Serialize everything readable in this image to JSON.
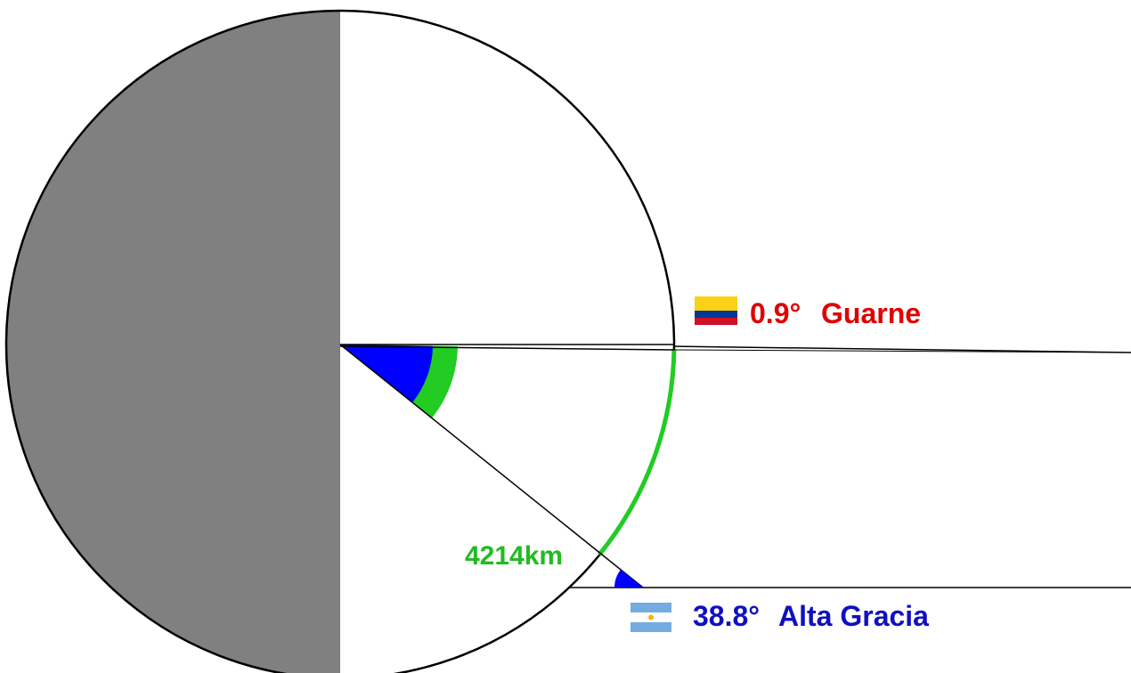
{
  "locations": [
    {
      "id": "guarne",
      "angle_label": "0.9°",
      "name": "Guarne",
      "color": "#e00000",
      "flag": "colombia",
      "flag_colors": [
        "#fcd116",
        "#003893",
        "#ce1126"
      ]
    },
    {
      "id": "alta_gracia",
      "angle_label": "38.8°",
      "name": "Alta Gracia",
      "color": "#1010c0",
      "flag": "argentina",
      "flag_colors": [
        "#74acdf",
        "#ffffff",
        "#74acdf"
      ]
    }
  ],
  "distance_label": "4214km",
  "colors": {
    "shadow": "#808080",
    "arc": "#22cc22",
    "angle_fill": "#0000ff",
    "outline": "#000000",
    "distance_text": "#22bb22"
  }
}
